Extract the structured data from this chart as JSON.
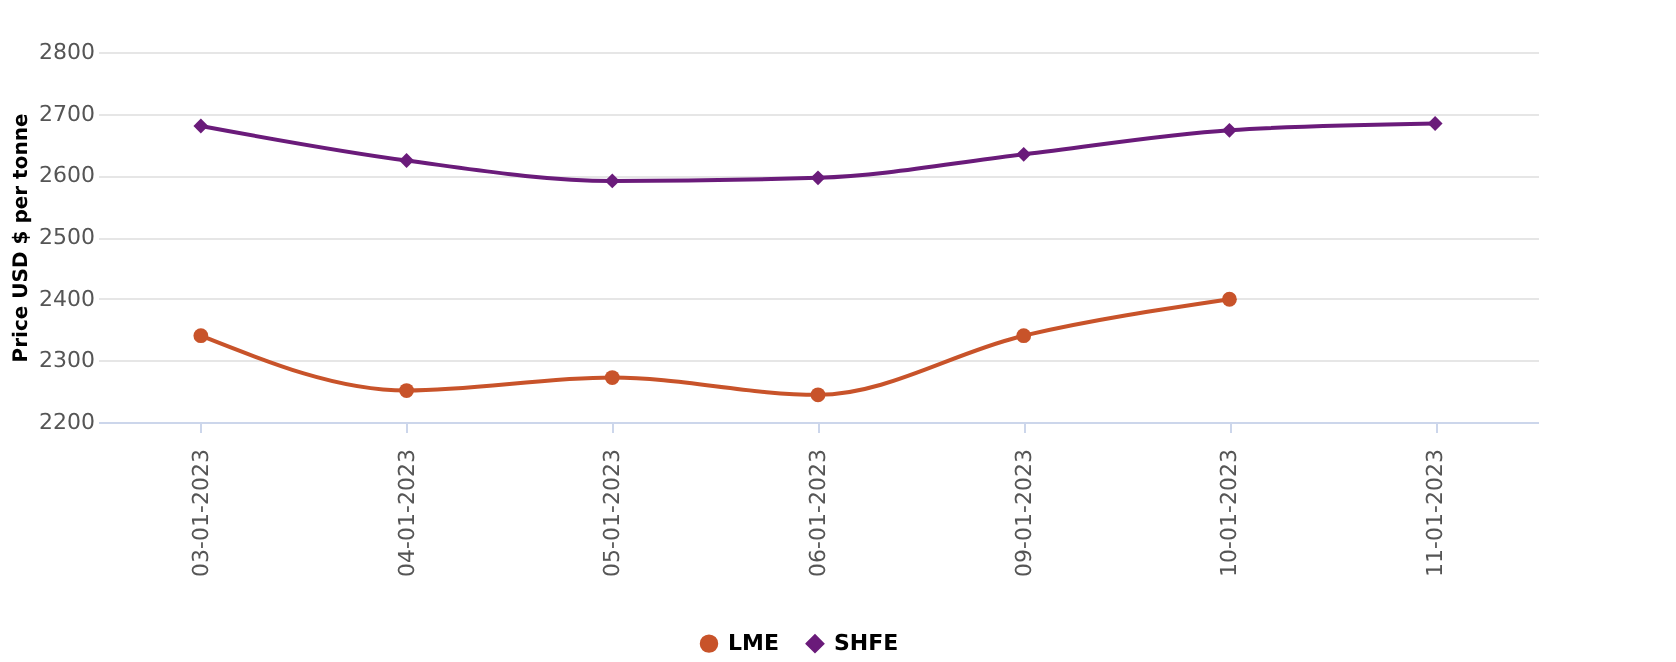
{
  "chart_data": {
    "type": "line",
    "ylabel": "Price USD $ per tonne",
    "categories": [
      "03-01-2023",
      "04-01-2023",
      "05-01-2023",
      "06-01-2023",
      "09-01-2023",
      "10-01-2023",
      "11-01-2023"
    ],
    "series": [
      {
        "name": "LME",
        "color": "#c8532a",
        "marker": "circle",
        "values": [
          2340,
          2251,
          2272,
          2244,
          2340,
          2399,
          null
        ]
      },
      {
        "name": "SHFE",
        "color": "#6a1b7a",
        "marker": "diamond",
        "values": [
          2680,
          2624,
          2591,
          2596,
          2634,
          2673,
          2684
        ]
      }
    ],
    "ylim": [
      2200,
      2800
    ],
    "yticks": [
      2200,
      2300,
      2400,
      2500,
      2600,
      2700,
      2800
    ],
    "grid": "y",
    "legend": "bottom",
    "line_style": "solid"
  }
}
